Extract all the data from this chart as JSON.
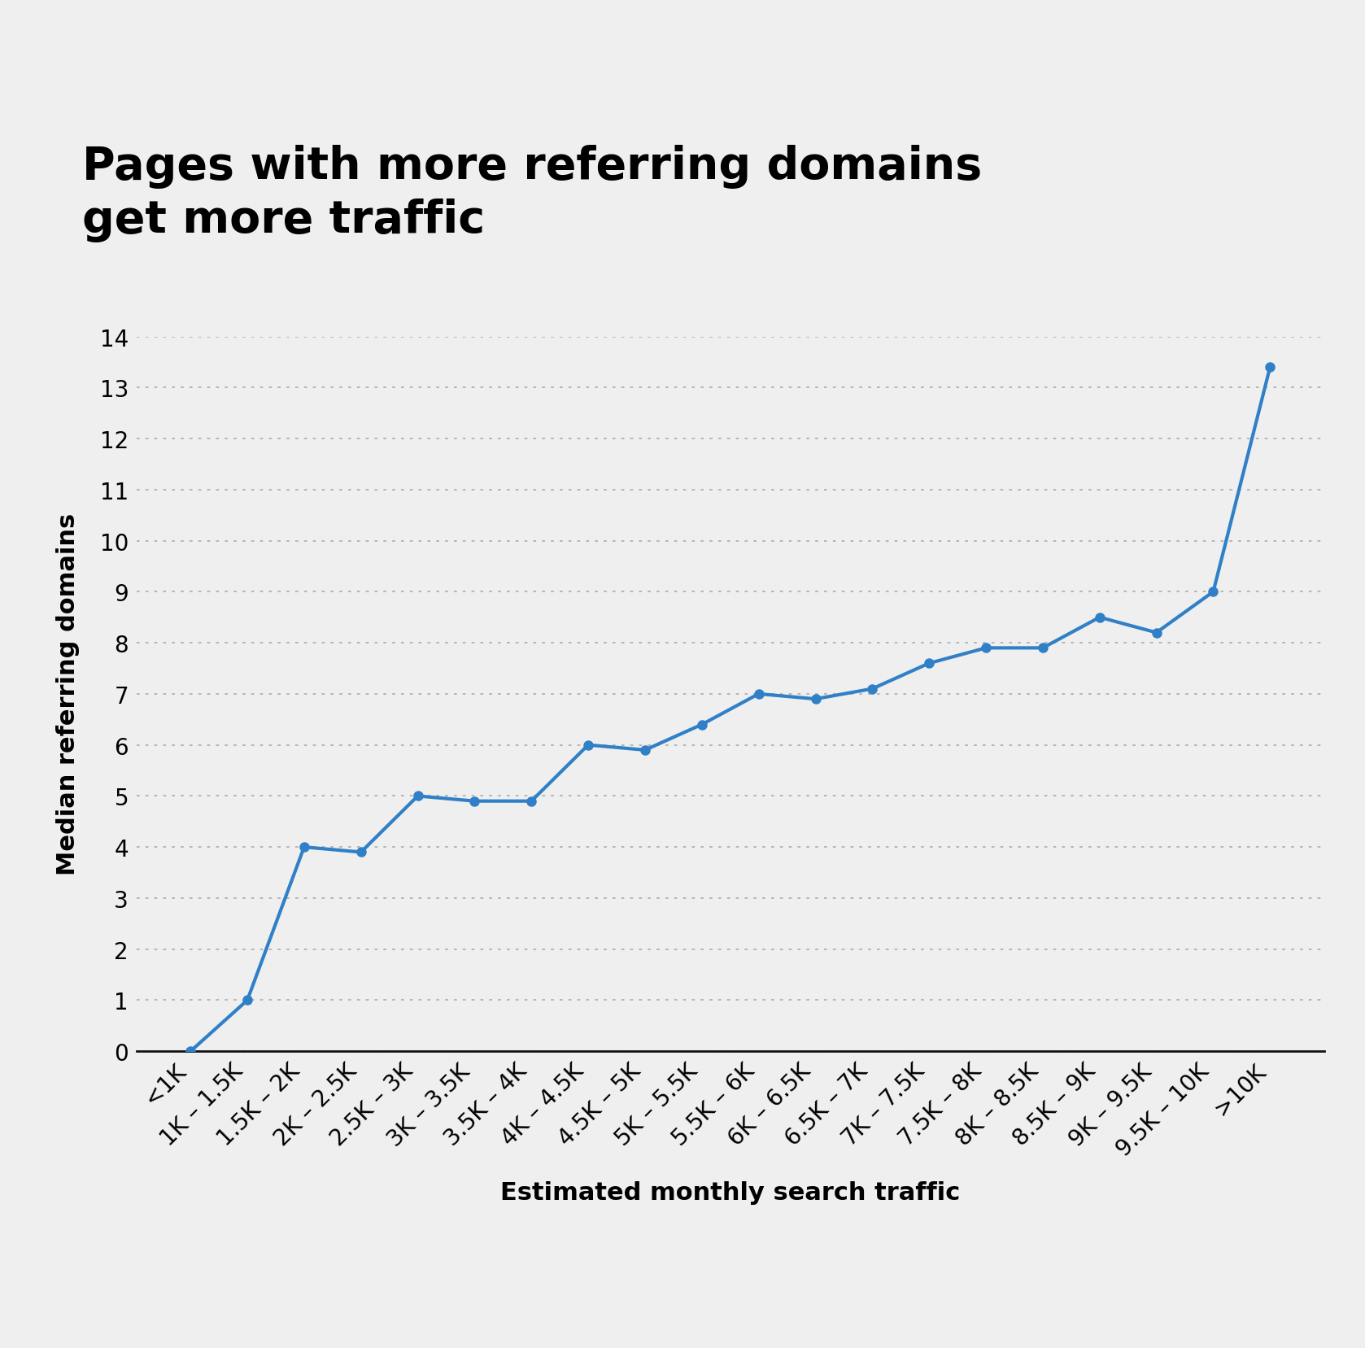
{
  "title": "Pages with more referring domains\nget more traffic",
  "xlabel": "Estimated monthly search traffic",
  "ylabel": "Median referring domains",
  "background_color": "#efefef",
  "line_color": "#3080c8",
  "marker_color": "#3080c8",
  "categories": [
    "<1K",
    "1K – 1.5K",
    "1.5K – 2K",
    "2K – 2.5K",
    "2.5K – 3K",
    "3K – 3.5K",
    "3.5K – 4K",
    "4K – 4.5K",
    "4.5K – 5K",
    "5K – 5.5K",
    "5.5K – 6K",
    "6K – 6.5K",
    "6.5K – 7K",
    "7K – 7.5K",
    "7.5K – 8K",
    "8K – 8.5K",
    "8.5K – 9K",
    "9K – 9.5K",
    "9.5K – 10K",
    ">10K"
  ],
  "values": [
    0,
    1,
    4,
    3.9,
    5,
    4.9,
    4.9,
    6,
    5.9,
    6.4,
    7,
    6.9,
    7.1,
    7.6,
    7.9,
    7.9,
    8.5,
    8.2,
    9,
    13.4
  ],
  "ylim": [
    0,
    14
  ],
  "yticks": [
    0,
    1,
    2,
    3,
    4,
    5,
    6,
    7,
    8,
    9,
    10,
    11,
    12,
    13,
    14
  ],
  "title_fontsize": 40,
  "axis_label_fontsize": 22,
  "tick_fontsize": 20,
  "line_width": 3.0,
  "marker_size": 8
}
